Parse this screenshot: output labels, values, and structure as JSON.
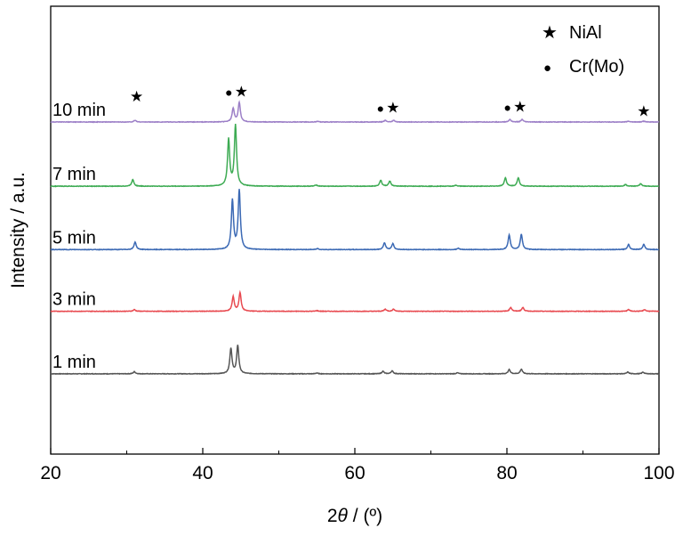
{
  "chart_data": {
    "type": "line",
    "title": "",
    "xlabel_prefix": "2",
    "xlabel_theta": "θ",
    "xlabel_unit": " / (º)",
    "ylabel": "Intensity / a.u.",
    "xlim": [
      20,
      100
    ],
    "xticks": [
      20,
      40,
      60,
      80,
      100
    ],
    "legend": {
      "placement": "top-right",
      "entries": [
        {
          "symbol": "★",
          "label": "NiAl"
        },
        {
          "symbol": "●",
          "label": "Cr(Mo)"
        }
      ]
    },
    "series": [
      {
        "name": "1 min",
        "color": "#555555",
        "baseline": 0.0,
        "noise": 0.003,
        "peaks": [
          [
            31.0,
            0.025
          ],
          [
            43.7,
            0.3
          ],
          [
            44.6,
            0.33
          ],
          [
            55.0,
            0.01
          ],
          [
            63.7,
            0.03
          ],
          [
            64.9,
            0.035
          ],
          [
            73.5,
            0.012
          ],
          [
            80.3,
            0.05
          ],
          [
            81.9,
            0.055
          ],
          [
            95.9,
            0.02
          ],
          [
            97.9,
            0.02
          ]
        ]
      },
      {
        "name": "3 min",
        "color": "#e84a50",
        "baseline": 0.74,
        "noise": 0.003,
        "peaks": [
          [
            31.0,
            0.02
          ],
          [
            44.0,
            0.17
          ],
          [
            44.9,
            0.22
          ],
          [
            55.0,
            0.008
          ],
          [
            64.0,
            0.025
          ],
          [
            65.1,
            0.025
          ],
          [
            80.5,
            0.045
          ],
          [
            82.1,
            0.045
          ],
          [
            96.0,
            0.02
          ],
          [
            98.1,
            0.02
          ]
        ]
      },
      {
        "name": "5 min",
        "color": "#3b69b4",
        "baseline": 1.47,
        "noise": 0.003,
        "peaks": [
          [
            31.1,
            0.09
          ],
          [
            43.9,
            0.58
          ],
          [
            44.8,
            0.7
          ],
          [
            55.1,
            0.012
          ],
          [
            63.9,
            0.08
          ],
          [
            65.0,
            0.07
          ],
          [
            73.6,
            0.015
          ],
          [
            80.3,
            0.17
          ],
          [
            81.9,
            0.18
          ],
          [
            96.0,
            0.06
          ],
          [
            98.0,
            0.06
          ]
        ]
      },
      {
        "name": "7 min",
        "color": "#3dab53",
        "baseline": 2.22,
        "noise": 0.003,
        "peaks": [
          [
            30.8,
            0.08
          ],
          [
            43.4,
            0.55
          ],
          [
            44.3,
            0.72
          ],
          [
            54.9,
            0.015
          ],
          [
            63.4,
            0.07
          ],
          [
            64.6,
            0.06
          ],
          [
            73.3,
            0.012
          ],
          [
            79.8,
            0.1
          ],
          [
            81.5,
            0.1
          ],
          [
            95.6,
            0.02
          ],
          [
            97.6,
            0.03
          ]
        ]
      },
      {
        "name": "10 min",
        "color": "#9c7fc7",
        "baseline": 2.98,
        "noise": 0.003,
        "peaks": [
          [
            31.1,
            0.02
          ],
          [
            44.0,
            0.16
          ],
          [
            44.8,
            0.23
          ],
          [
            55.1,
            0.008
          ],
          [
            64.0,
            0.02
          ],
          [
            65.1,
            0.02
          ],
          [
            80.4,
            0.03
          ],
          [
            82.0,
            0.03
          ],
          [
            96.0,
            0.01
          ],
          [
            98.0,
            0.01
          ]
        ]
      }
    ],
    "annotations": [
      {
        "x": 31.3,
        "y": 3.22,
        "symbols": [
          "★"
        ]
      },
      {
        "x": 44.25,
        "y": 3.28,
        "symbols": [
          "●",
          "★"
        ]
      },
      {
        "x": 64.2,
        "y": 3.09,
        "symbols": [
          "●",
          "★"
        ]
      },
      {
        "x": 80.9,
        "y": 3.1,
        "symbols": [
          "●",
          "★"
        ]
      },
      {
        "x": 98.0,
        "y": 3.05,
        "symbols": [
          "★"
        ]
      }
    ]
  }
}
